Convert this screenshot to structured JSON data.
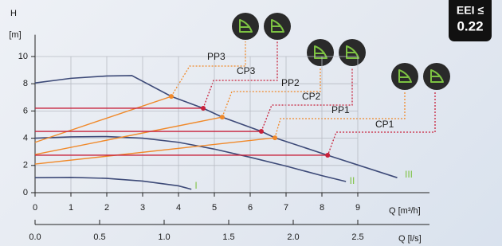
{
  "chart_data": {
    "type": "line",
    "ylabel": "H",
    "yunit": "[m]",
    "xlabel": "Q [m³/h]",
    "x2label": "Q [l/s]",
    "badge_label": "EEI ≤",
    "badge_value": "0.22",
    "xlim": [
      0,
      11
    ],
    "xticks": [
      0,
      1,
      2,
      3,
      4,
      5,
      6,
      7,
      8,
      9
    ],
    "x2lim": [
      0,
      3.0556
    ],
    "x2ticks": [
      {
        "value": 0,
        "label": "0.0"
      },
      0.5,
      {
        "value": 1,
        "label": "1.0"
      },
      1.5,
      {
        "value": 2,
        "label": "2.0"
      },
      2.5
    ],
    "ylim": [
      0,
      11.6
    ],
    "yticks": [
      0,
      2,
      4,
      6,
      8,
      10
    ],
    "grid": true,
    "series": [
      {
        "name": "I",
        "color": "#3d4a78",
        "x": [
          0,
          1,
          2,
          3,
          4,
          4.36
        ],
        "values": [
          1.1,
          1.12,
          1.05,
          0.85,
          0.5,
          0.25
        ]
      },
      {
        "name": "II",
        "color": "#3d4a78",
        "x": [
          0,
          1,
          2,
          3,
          4,
          5,
          6,
          7,
          8,
          8.67
        ],
        "values": [
          4.0,
          4.1,
          4.12,
          4.0,
          3.7,
          3.2,
          2.6,
          1.95,
          1.25,
          0.82
        ]
      },
      {
        "name": "III",
        "color": "#3d4a78",
        "x": [
          0,
          1,
          2,
          2.7,
          3.8,
          4.69,
          5.22,
          6.31,
          6.69,
          8.16,
          10.1
        ],
        "values": [
          8.06,
          8.4,
          8.57,
          8.6,
          7.07,
          6.2,
          5.55,
          4.5,
          4.03,
          2.75,
          1.1
        ]
      },
      {
        "name": "PP3",
        "color": "#f0892a",
        "x": [
          0,
          3.8
        ],
        "values": [
          3.7,
          7.07
        ]
      },
      {
        "name": "CP3",
        "color": "#c8203a",
        "x": [
          0,
          4.69
        ],
        "values": [
          6.2,
          6.2
        ]
      },
      {
        "name": "PP2",
        "color": "#f0892a",
        "x": [
          0,
          5.22
        ],
        "values": [
          2.8,
          5.55
        ]
      },
      {
        "name": "CP2",
        "color": "#c8203a",
        "x": [
          0,
          6.31
        ],
        "values": [
          4.5,
          4.5
        ]
      },
      {
        "name": "PP1",
        "color": "#f0892a",
        "x": [
          0,
          6.69
        ],
        "values": [
          2.1,
          4.03
        ]
      },
      {
        "name": "CP1",
        "color": "#c8203a",
        "x": [
          0,
          8.16
        ],
        "values": [
          2.75,
          2.75
        ]
      }
    ]
  }
}
